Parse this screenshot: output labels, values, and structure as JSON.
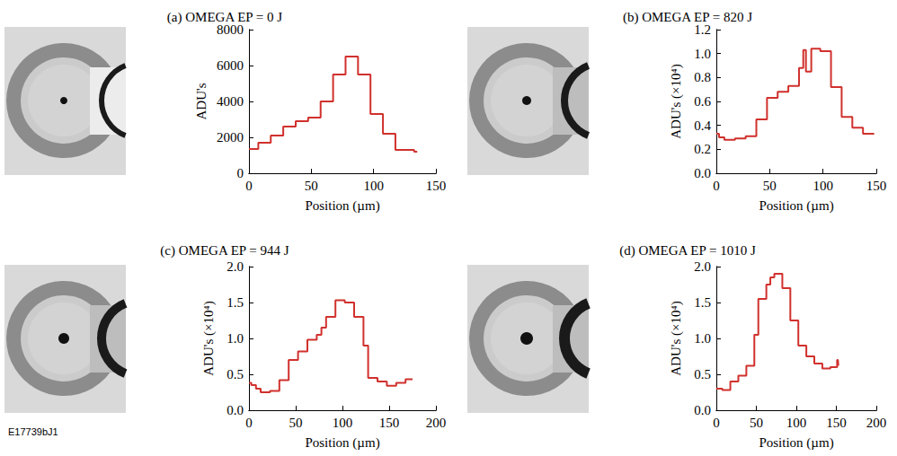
{
  "figure_id": "E17739bJ1",
  "chart_data": [
    {
      "type": "line",
      "title": "(a) OMEGA EP = 0 J",
      "color": "#d0312d",
      "grid": false,
      "line_style": "solid",
      "x_label": "Position (µm)",
      "y_label": "ADU's",
      "x": [
        0,
        5,
        10,
        15,
        20,
        25,
        30,
        35,
        40,
        45,
        50,
        55,
        60,
        65,
        70,
        75,
        80,
        85,
        90,
        95,
        100,
        105,
        110,
        115,
        120,
        125,
        130,
        135
      ],
      "values": [
        1350,
        1350,
        1700,
        1700,
        2100,
        2100,
        2600,
        2600,
        2900,
        2900,
        3100,
        3100,
        4000,
        4000,
        5500,
        5500,
        6500,
        6500,
        5500,
        5500,
        3300,
        3300,
        2200,
        2200,
        1300,
        1300,
        1300,
        1200
      ],
      "xlim": [
        0,
        150
      ],
      "xticks": [
        0,
        50,
        100,
        150
      ],
      "ylim": [
        0,
        8000
      ],
      "yticks": [
        0,
        2000,
        4000,
        6000,
        8000
      ]
    },
    {
      "type": "line",
      "title": "(b) OMEGA EP = 820 J",
      "color": "#d0312d",
      "grid": false,
      "line_style": "solid",
      "x_label": "Position (µm)",
      "y_label": "ADU's (×10⁴)",
      "x": [
        0,
        5,
        10,
        15,
        20,
        25,
        30,
        35,
        40,
        45,
        50,
        55,
        60,
        65,
        70,
        75,
        80,
        83,
        85,
        88,
        90,
        95,
        100,
        105,
        110,
        115,
        120,
        125,
        130,
        135,
        140,
        145,
        148
      ],
      "values": [
        0.33,
        0.3,
        0.28,
        0.28,
        0.29,
        0.29,
        0.31,
        0.31,
        0.45,
        0.45,
        0.63,
        0.63,
        0.68,
        0.68,
        0.73,
        0.73,
        0.88,
        1.03,
        0.85,
        0.85,
        1.04,
        1.04,
        1.02,
        1.02,
        0.72,
        0.72,
        0.47,
        0.47,
        0.38,
        0.38,
        0.33,
        0.33,
        0.33
      ],
      "xlim": [
        0,
        150
      ],
      "xticks": [
        0,
        50,
        100,
        150
      ],
      "ylim": [
        0,
        1.2
      ],
      "yticks": [
        {
          "value": 0,
          "label": "0.0"
        },
        0.2,
        0.4,
        0.6,
        0.8,
        {
          "value": 1,
          "label": "1.0"
        },
        1.2
      ]
    },
    {
      "type": "line",
      "title": "(c) OMEGA EP = 944 J",
      "color": "#d0312d",
      "grid": false,
      "line_style": "solid",
      "x_label": "Position (µm)",
      "y_label": "ADU's (×10⁴)",
      "x": [
        0,
        5,
        10,
        15,
        20,
        25,
        30,
        35,
        40,
        45,
        50,
        55,
        60,
        65,
        70,
        75,
        80,
        85,
        90,
        95,
        100,
        105,
        110,
        115,
        120,
        125,
        130,
        135,
        140,
        145,
        150,
        155,
        160,
        165,
        170,
        175
      ],
      "values": [
        0.38,
        0.35,
        0.3,
        0.25,
        0.25,
        0.27,
        0.27,
        0.42,
        0.42,
        0.7,
        0.7,
        0.82,
        0.82,
        0.98,
        0.98,
        1.05,
        1.15,
        1.3,
        1.3,
        1.53,
        1.53,
        1.5,
        1.5,
        1.3,
        1.3,
        0.9,
        0.45,
        0.45,
        0.4,
        0.4,
        0.34,
        0.34,
        0.38,
        0.38,
        0.43,
        0.43
      ],
      "xlim": [
        0,
        200
      ],
      "xticks": [
        0,
        50,
        100,
        150,
        200
      ],
      "ylim": [
        0,
        2
      ],
      "yticks": [
        {
          "value": 0,
          "label": "0.0"
        },
        0.5,
        {
          "value": 1,
          "label": "1.0"
        },
        1.5,
        {
          "value": 2,
          "label": "2.0"
        }
      ]
    },
    {
      "type": "line",
      "title": "(d) OMEGA EP = 1010 J",
      "color": "#d0312d",
      "grid": false,
      "line_style": "solid",
      "x_label": "Position (µm)",
      "y_label": "ADU's (×10⁴)",
      "x": [
        0,
        5,
        10,
        15,
        20,
        25,
        30,
        35,
        40,
        45,
        50,
        55,
        60,
        65,
        70,
        75,
        80,
        85,
        90,
        95,
        100,
        105,
        110,
        115,
        120,
        125,
        130,
        135,
        140,
        145,
        150,
        152,
        153
      ],
      "values": [
        0.3,
        0.3,
        0.28,
        0.28,
        0.4,
        0.4,
        0.48,
        0.48,
        0.62,
        0.62,
        1.05,
        1.55,
        1.55,
        1.75,
        1.85,
        1.9,
        1.9,
        1.7,
        1.7,
        1.25,
        1.25,
        0.9,
        0.9,
        0.75,
        0.75,
        0.65,
        0.65,
        0.58,
        0.58,
        0.6,
        0.6,
        0.7,
        0.62
      ],
      "xlim": [
        0,
        200
      ],
      "xticks": [
        0,
        50,
        100,
        150,
        200
      ],
      "ylim": [
        0,
        2
      ],
      "yticks": [
        {
          "value": 0,
          "label": "0.0"
        },
        0.5,
        {
          "value": 1,
          "label": "1.0"
        },
        1.5,
        {
          "value": 2,
          "label": "2.0"
        }
      ]
    }
  ]
}
